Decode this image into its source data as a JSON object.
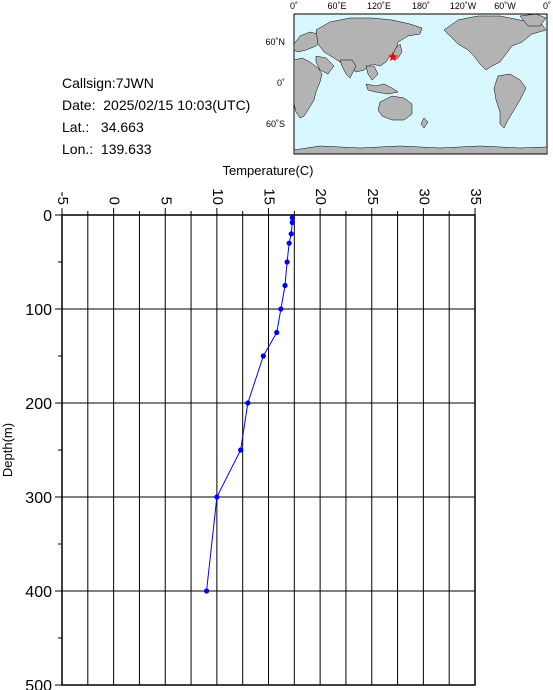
{
  "station": {
    "callsign_label": "Callsign:",
    "callsign": "7JWN",
    "date_label": "Date:",
    "date": "2025/02/15 10:03(UTC)",
    "lat_label": "Lat.:",
    "lat": "34.663",
    "lon_label": "Lon.:",
    "lon": "139.633"
  },
  "map": {
    "top_labels": [
      "0˚",
      "60˚E",
      "120˚E",
      "180˚",
      "120˚W",
      "60˚W",
      "0˚"
    ],
    "lat_labels": [
      "60˚N",
      "0˚",
      "60˚S"
    ],
    "ocean_color": "#d9f7ff",
    "land_color": "#b3b3b3",
    "marker_color": "#ff0000",
    "marker_icon": "star-icon"
  },
  "chart_data": {
    "type": "line",
    "xlabel": "Temperature(C)",
    "ylabel": "Depth(m)",
    "xlim": [
      -5,
      35
    ],
    "ylim": [
      0,
      500
    ],
    "y_inverted": true,
    "x_ticks": [
      "-5",
      "0",
      "5",
      "10",
      "15",
      "20",
      "25",
      "30",
      "35"
    ],
    "y_ticks": [
      "0",
      "100",
      "200",
      "300",
      "400",
      "500"
    ],
    "grid": true,
    "line_color": "#0000ff",
    "series": [
      {
        "x": [
          17.3,
          17.3,
          17.2,
          17.0,
          16.8,
          16.6,
          16.2,
          15.8,
          14.5,
          13.0,
          12.3,
          10.0,
          9.0
        ],
        "y": [
          3,
          8,
          20,
          30,
          50,
          75,
          100,
          125,
          150,
          200,
          250,
          300,
          400
        ]
      }
    ]
  }
}
